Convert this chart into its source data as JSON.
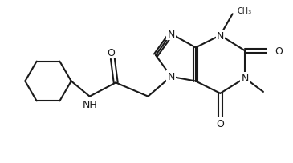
{
  "bg_color": "#ffffff",
  "line_color": "#1a1a1a",
  "line_width": 1.5,
  "font_size": 8.5,
  "figsize": [
    3.65,
    2.05
  ],
  "dpi": 100,
  "xlim": [
    0,
    9.5
  ],
  "ylim": [
    0,
    5.3
  ]
}
